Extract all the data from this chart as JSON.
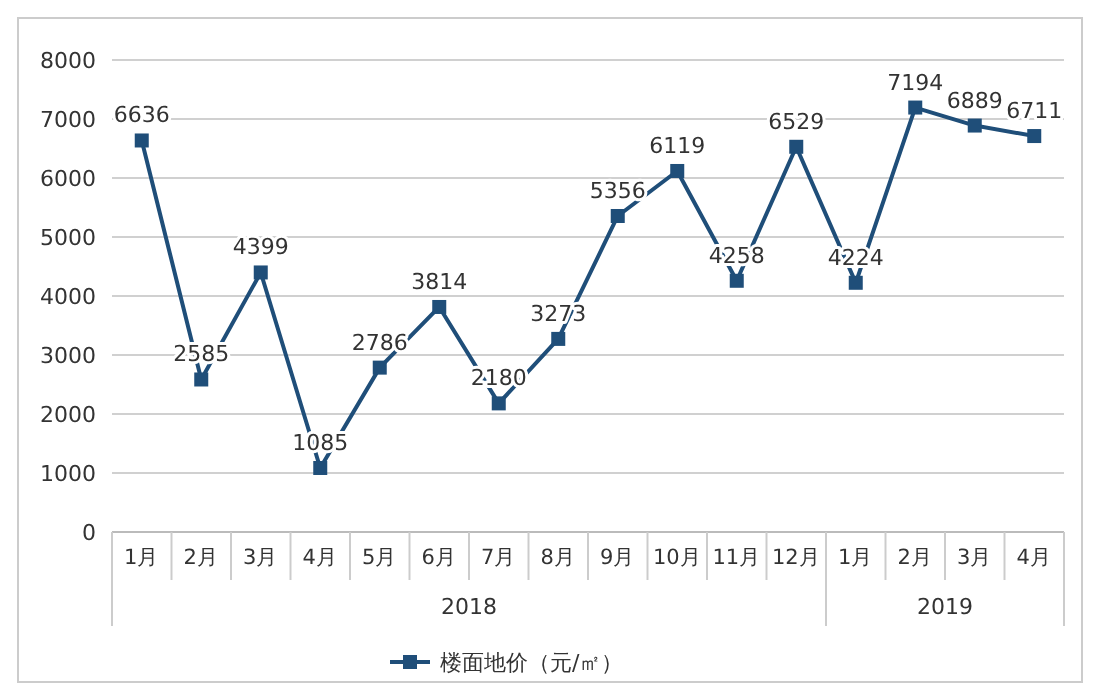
{
  "chart_data": {
    "type": "line",
    "categories": [
      "1月",
      "2月",
      "3月",
      "4月",
      "5月",
      "6月",
      "7月",
      "8月",
      "9月",
      "10月",
      "11月",
      "12月",
      "1月",
      "2月",
      "3月",
      "4月"
    ],
    "series": [
      {
        "name": "楼面地价（元/㎡）",
        "color": "#1f4e79",
        "values": [
          6636,
          2585,
          4399,
          1085,
          2786,
          3814,
          2180,
          3273,
          5356,
          6119,
          4258,
          6529,
          4224,
          7194,
          6889,
          6711
        ]
      }
    ],
    "ylim": [
      0,
      8000
    ],
    "yticks": [
      0,
      1000,
      2000,
      3000,
      4000,
      5000,
      6000,
      7000,
      8000
    ],
    "grid": "y",
    "legend": "bottom",
    "marker": "square",
    "data_labels": true,
    "annotations": [
      "2018",
      "2019"
    ]
  }
}
